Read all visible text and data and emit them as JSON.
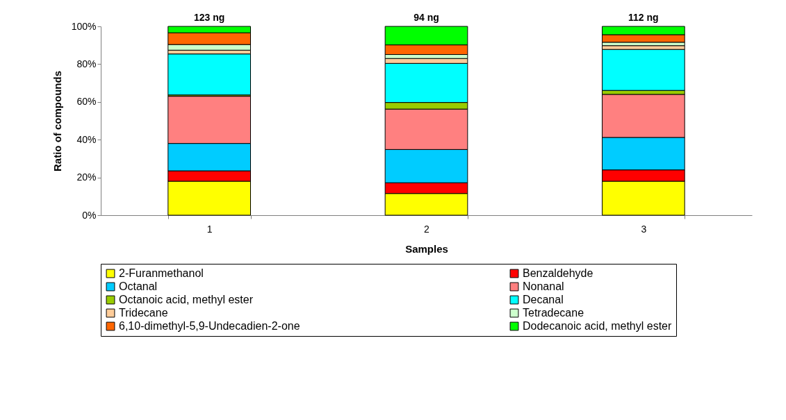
{
  "chart_data": {
    "type": "bar",
    "stacked": true,
    "xlabel": "Samples",
    "ylabel": "Ratio of compounds",
    "categories": [
      "1",
      "2",
      "3"
    ],
    "series": [
      {
        "name": "2-Furanmethanol",
        "color": "#ffff00",
        "values": [
          18,
          11.5,
          18
        ]
      },
      {
        "name": "Benzaldehyde",
        "color": "#ff0000",
        "values": [
          5.5,
          5.7,
          6
        ]
      },
      {
        "name": "Octanal",
        "color": "#00ccff",
        "values": [
          14.5,
          17.6,
          17.2
        ]
      },
      {
        "name": "Nonanal",
        "color": "#ff8080",
        "values": [
          25,
          21.4,
          22.8
        ]
      },
      {
        "name": "Octanoic acid, methyl ester",
        "color": "#99cc00",
        "values": [
          0.7,
          3.5,
          2.1
        ]
      },
      {
        "name": "Decanal",
        "color": "#00ffff",
        "values": [
          21.7,
          20.7,
          21.7
        ]
      },
      {
        "name": "Tridecane",
        "color": "#ffcc99",
        "values": [
          2,
          2.6,
          2
        ]
      },
      {
        "name": "Tetradecane",
        "color": "#ccffcc",
        "values": [
          3,
          2.1,
          1.8
        ]
      },
      {
        "name": "6,10-dimethyl-5,9-Undecadien-2-one",
        "color": "#ff6600",
        "values": [
          6.2,
          5.1,
          4
        ]
      },
      {
        "name": "Dodecanoic acid, methyl ester",
        "color": "#00ff00",
        "values": [
          3.4,
          9.8,
          4.4
        ]
      }
    ],
    "ylim": [
      0,
      100
    ],
    "yticks": [
      {
        "value": 0,
        "label": "0%"
      },
      {
        "value": 20,
        "label": "20%"
      },
      {
        "value": 40,
        "label": "40%"
      },
      {
        "value": 60,
        "label": "60%"
      },
      {
        "value": 80,
        "label": "80%"
      },
      {
        "value": 100,
        "label": "100%"
      }
    ],
    "annotations": [
      {
        "text": "123 ng",
        "x": "1",
        "y": 100
      },
      {
        "text": "94 ng",
        "x": "2",
        "y": 100
      },
      {
        "text": "112 ng",
        "x": "3",
        "y": 100
      }
    ],
    "grid": false,
    "legend": "bottom"
  }
}
